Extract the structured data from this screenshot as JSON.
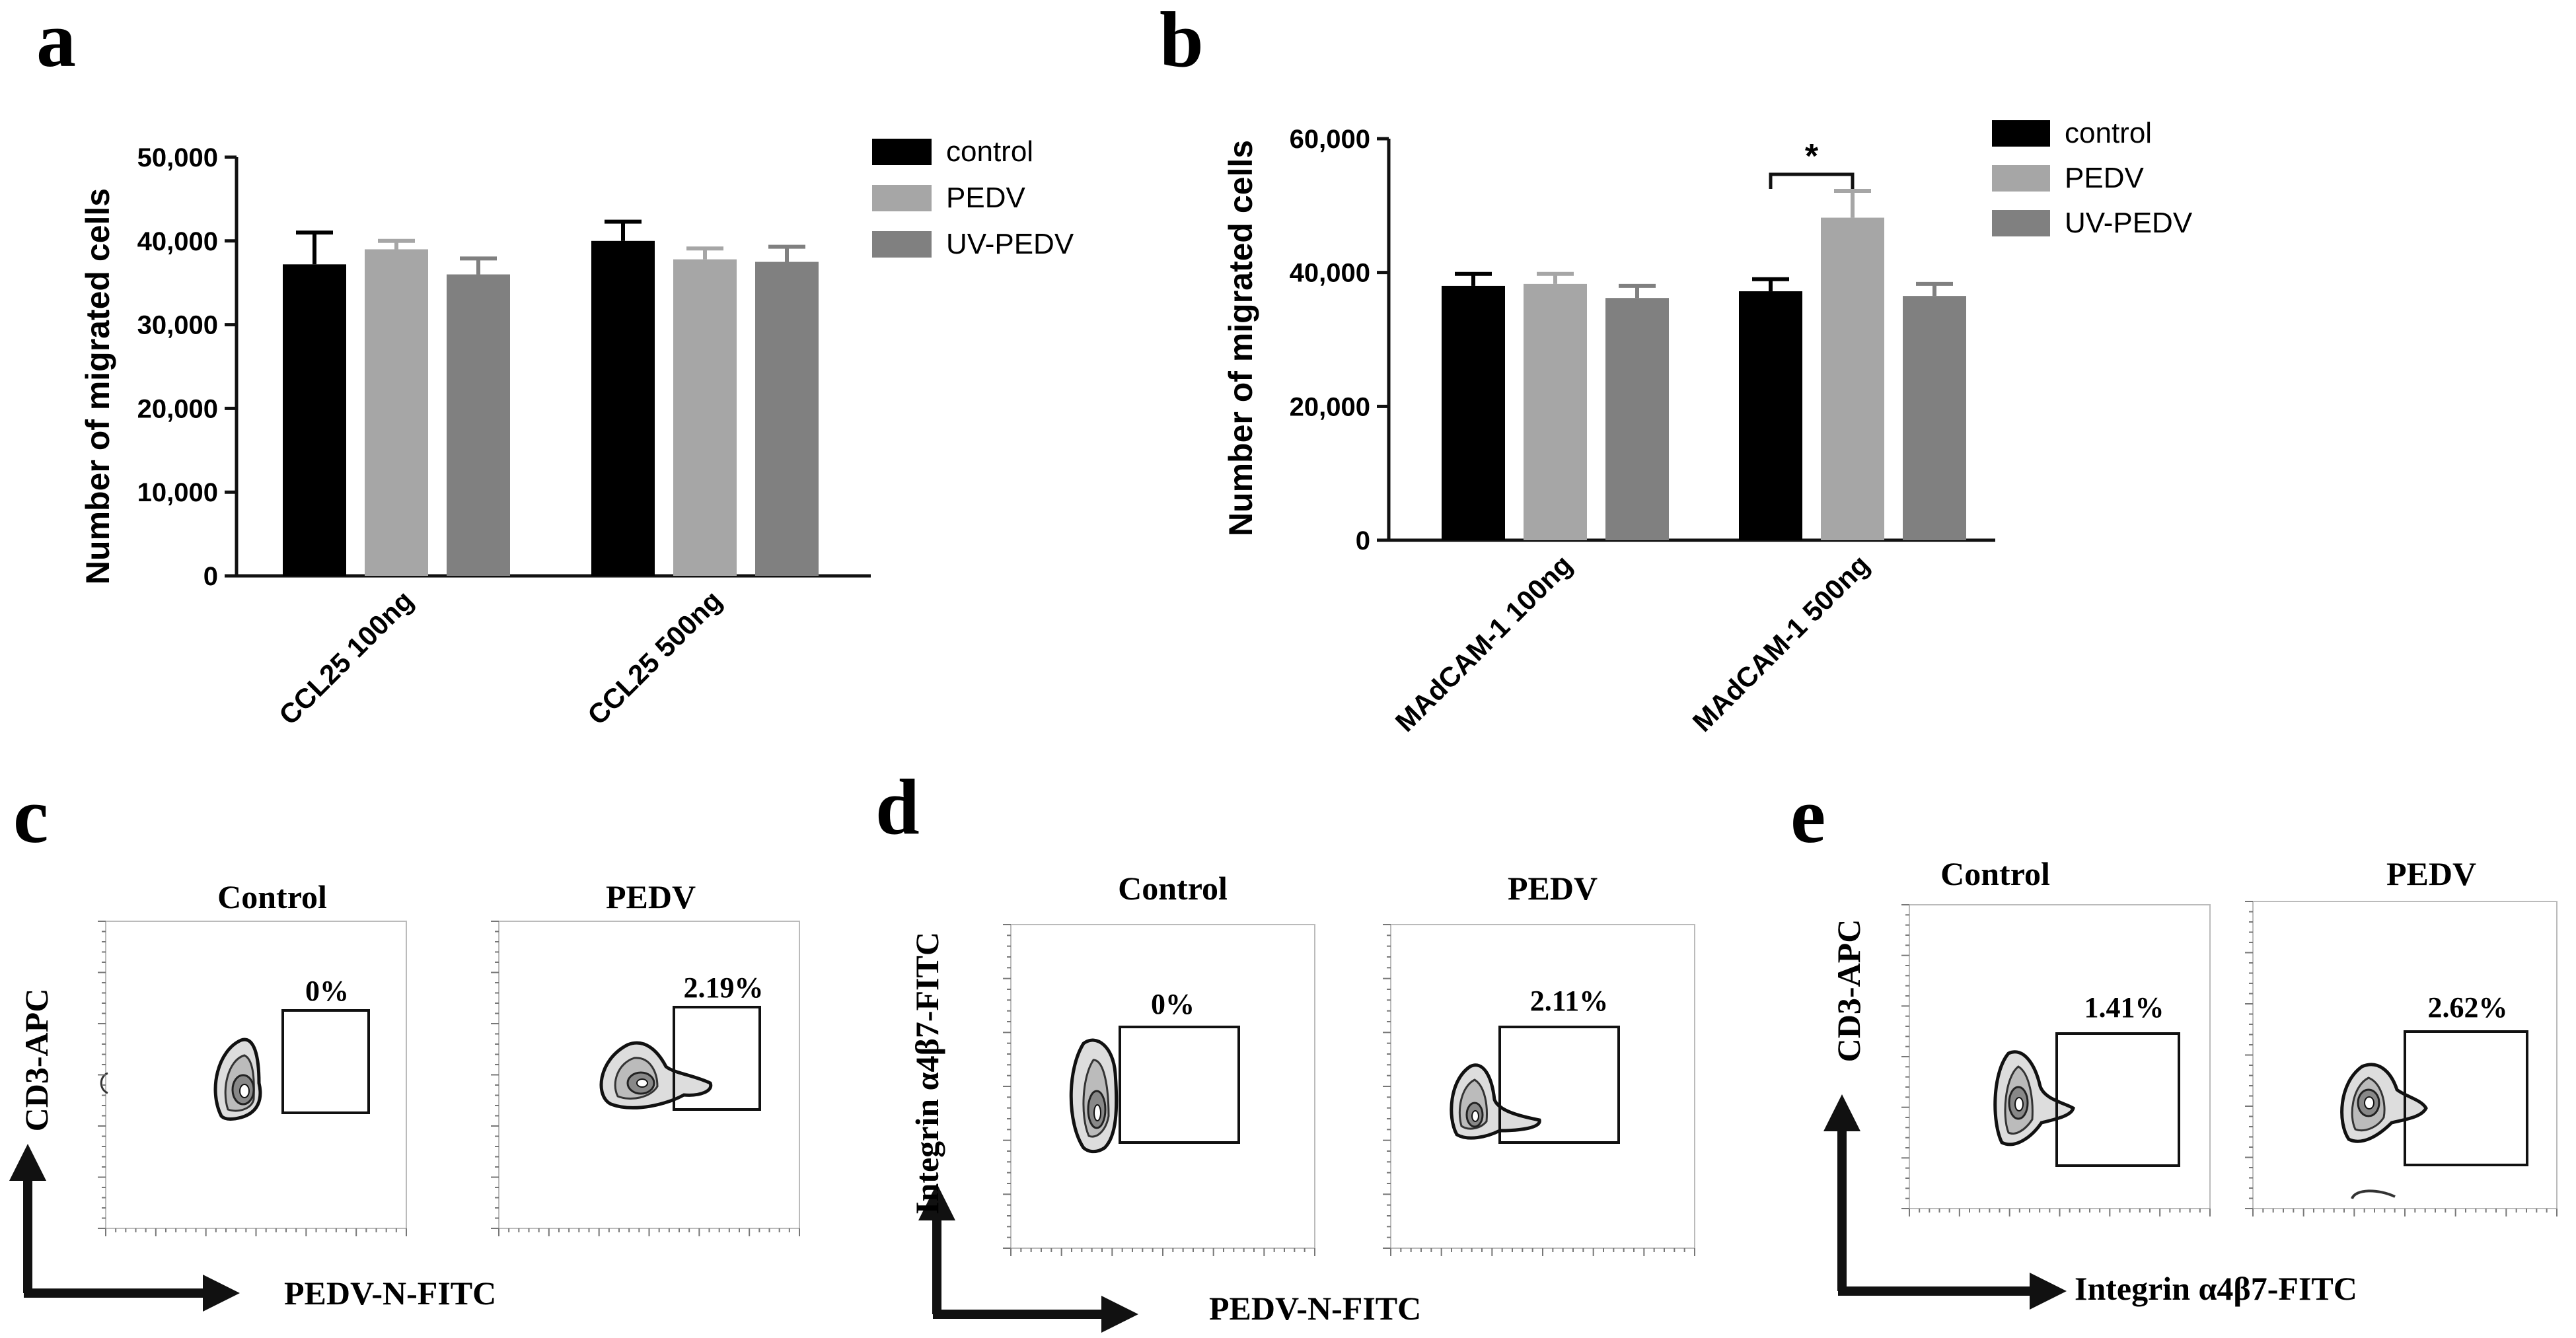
{
  "figure": {
    "panel_letters": [
      "a",
      "b",
      "c",
      "d",
      "e"
    ]
  },
  "chart_data": [
    {
      "panel": "a",
      "type": "bar",
      "title": "",
      "xlabel": "",
      "ylabel": "Number of migrated cells",
      "categories": [
        "CCL25 100ng",
        "CCL25 500ng"
      ],
      "ylim": [
        0,
        50000
      ],
      "yticks": [
        0,
        10000,
        20000,
        30000,
        40000,
        50000
      ],
      "ytick_labels": [
        "0",
        "10,000",
        "20,000",
        "30,000",
        "40,000",
        "50,000"
      ],
      "series": [
        {
          "name": "control",
          "color": "#000000",
          "values": [
            37200,
            40000
          ],
          "errors": [
            3800,
            2300
          ]
        },
        {
          "name": "PEDV",
          "color": "#a6a6a6",
          "values": [
            39000,
            37800
          ],
          "errors": [
            1000,
            1300
          ]
        },
        {
          "name": "UV-PEDV",
          "color": "#808080",
          "values": [
            36000,
            37500
          ],
          "errors": [
            1900,
            1800
          ]
        }
      ],
      "legend": "top-right"
    },
    {
      "panel": "b",
      "type": "bar",
      "title": "",
      "xlabel": "",
      "ylabel": "Number of migrated  cells",
      "categories": [
        "MAdCAM-1 100ng",
        "MAdCAM-1  500ng"
      ],
      "ylim": [
        0,
        60000
      ],
      "yticks": [
        0,
        20000,
        40000,
        60000
      ],
      "ytick_labels": [
        "0",
        "20,000",
        "40,000",
        "60,000"
      ],
      "series": [
        {
          "name": "control",
          "color": "#000000",
          "values": [
            38000,
            37200
          ],
          "errors": [
            1800,
            1800
          ]
        },
        {
          "name": "PEDV",
          "color": "#a6a6a6",
          "values": [
            38300,
            48200
          ],
          "errors": [
            1500,
            4000
          ]
        },
        {
          "name": "UV-PEDV",
          "color": "#808080",
          "values": [
            36200,
            36500
          ],
          "errors": [
            1800,
            1800
          ]
        }
      ],
      "significance": {
        "label": "*",
        "category": "MAdCAM-1  500ng",
        "between": [
          "control",
          "PEDV"
        ]
      },
      "legend": "top-right"
    }
  ],
  "flow_panels": {
    "c": {
      "x_axis_label": "PEDV-N-FITC",
      "y_axis_label": "CD3-APC",
      "plots": [
        {
          "title": "Control",
          "gate_percent": "0%"
        },
        {
          "title": "PEDV",
          "gate_percent": "2.19%"
        }
      ]
    },
    "d": {
      "x_axis_label": "PEDV-N-FITC",
      "y_axis_label": "Integrin α4β7-FITC",
      "plots": [
        {
          "title": "Control",
          "gate_percent": "0%"
        },
        {
          "title": "PEDV",
          "gate_percent": "2.11%"
        }
      ]
    },
    "e": {
      "x_axis_label": "Integrin α4β7-FITC",
      "y_axis_label": "CD3-APC",
      "plots": [
        {
          "title": "Control",
          "gate_percent": "1.41%"
        },
        {
          "title": "PEDV",
          "gate_percent": "2.62%"
        }
      ]
    }
  }
}
